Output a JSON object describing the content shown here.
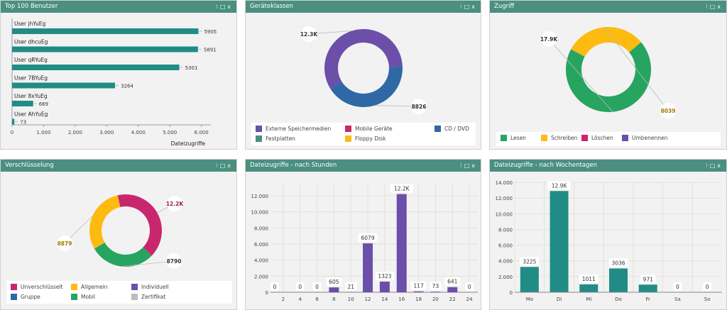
{
  "colors": {
    "header": "#4a8f80",
    "teal": "#218c86",
    "purple": "#6b4fa8",
    "blue": "#2e69a6",
    "green": "#27a460",
    "yellow": "#fdbb12",
    "magenta": "#c9276d",
    "gray": "#bdbdbd",
    "grid": "#e0e0cf"
  },
  "panels": [
    {
      "title": "Top 100 Benutzer"
    },
    {
      "title": "Geräteklassen"
    },
    {
      "title": "Zugriff"
    },
    {
      "title": "Verschlüsselung"
    },
    {
      "title": "Dateizugriffe - nach Stunden"
    },
    {
      "title": "Dateizugriffe - nach Wochentagen"
    }
  ],
  "controls": {
    "pin": "⁝",
    "max": "□",
    "close": "x"
  },
  "chart_data": [
    {
      "type": "bar",
      "orientation": "horizontal",
      "title": "Top 100 Benutzer",
      "categories": [
        "User jhYuEg",
        "User dhcuEg",
        "User qRYuEg",
        "User 7BYuEg",
        "User 8xYuEg",
        "User AhYuEg"
      ],
      "values": [
        5905,
        5891,
        5301,
        3264,
        669,
        73
      ],
      "value_labels": [
        "5905",
        "5891",
        "5301",
        "3264",
        "669",
        "73"
      ],
      "xlabel": "Dateizugriffe",
      "xlim": [
        0,
        6300
      ],
      "xticks": [
        0,
        1000,
        2000,
        3000,
        4000,
        5000,
        6000
      ],
      "xtick_labels": [
        "0",
        "1.000",
        "2.000",
        "3.000",
        "4.000",
        "5.000",
        "6.000"
      ]
    },
    {
      "type": "pie",
      "style": "donut",
      "title": "Geräteklassen",
      "slices": [
        {
          "name": "Externe Speichermedien",
          "value": 12300,
          "color": "#6b4fa8"
        },
        {
          "name": "CD / DVD",
          "value": 8826,
          "color": "#2e69a6"
        }
      ],
      "callouts": [
        "12.3K",
        "8826"
      ],
      "legend": [
        {
          "label": "Externe Speichermedien",
          "color": "#6b4fa8"
        },
        {
          "label": "Mobile Geräte",
          "color": "#c9276d"
        },
        {
          "label": "CD / DVD",
          "color": "#2e69a6"
        },
        {
          "label": "Festplatten",
          "color": "#4a8f80"
        },
        {
          "label": "Floppy Disk",
          "color": "#fdbb12"
        }
      ]
    },
    {
      "type": "pie",
      "style": "donut",
      "title": "Zugriff",
      "slices": [
        {
          "name": "Lesen",
          "value": 17900,
          "color": "#27a460"
        },
        {
          "name": "Schreiben",
          "value": 8039,
          "color": "#fdbb12"
        }
      ],
      "callouts": [
        "17.9K",
        "8039"
      ],
      "legend": [
        {
          "label": "Lesen",
          "color": "#27a460"
        },
        {
          "label": "Schreiben",
          "color": "#fdbb12"
        },
        {
          "label": "Löschen",
          "color": "#c9276d"
        },
        {
          "label": "Umbenennen",
          "color": "#6b4fa8"
        }
      ]
    },
    {
      "type": "pie",
      "style": "donut",
      "title": "Verschlüsselung",
      "slices": [
        {
          "name": "Unverschlüsselt",
          "value": 12200,
          "color": "#c9276d"
        },
        {
          "name": "Mobil",
          "value": 8790,
          "color": "#27a460"
        },
        {
          "name": "Allgemein",
          "value": 8879,
          "color": "#fdbb12"
        }
      ],
      "callouts": [
        "12.2K",
        "8790",
        "8879"
      ],
      "legend": [
        {
          "label": "Unverschlüsselt",
          "color": "#c9276d"
        },
        {
          "label": "Allgemein",
          "color": "#fdbb12"
        },
        {
          "label": "Individuell",
          "color": "#6b4fa8"
        },
        {
          "label": "Gruppe",
          "color": "#2e69a6"
        },
        {
          "label": "Mobil",
          "color": "#27a460"
        },
        {
          "label": "Zertifikat",
          "color": "#bdbdbd"
        }
      ]
    },
    {
      "type": "bar",
      "title": "Dateizugriffe - nach Stunden",
      "categories": [
        "1",
        "2",
        "3",
        "4",
        "5",
        "6",
        "7",
        "8",
        "9",
        "10",
        "11",
        "12",
        "13",
        "14",
        "15",
        "16",
        "17",
        "18",
        "19",
        "20",
        "21",
        "22",
        "23"
      ],
      "values": [
        0,
        0,
        0,
        0,
        0,
        0,
        0,
        605,
        0,
        21,
        0,
        6079,
        0,
        1323,
        0,
        12200,
        0,
        117,
        0,
        73,
        0,
        641,
        0
      ],
      "labeled": [
        1,
        4,
        6,
        8,
        10,
        12,
        14,
        16,
        18,
        20,
        22,
        24
      ],
      "label_text": {
        "1": "0",
        "4": "0",
        "6": "0",
        "8": "605",
        "10": "21",
        "12": "6079",
        "14": "1323",
        "16": "12.2K",
        "18": "117",
        "20": "73",
        "22": "641",
        "24": "0"
      },
      "ylim": [
        0,
        13400
      ],
      "yticks": [
        0,
        2000,
        4000,
        6000,
        8000,
        10000,
        12000
      ],
      "ytick_labels": [
        "0",
        "2.000",
        "4.000",
        "6.000",
        "8.000",
        "10.000",
        "12.000"
      ],
      "xticks": [
        2,
        4,
        6,
        8,
        10,
        12,
        14,
        16,
        18,
        20,
        22,
        24
      ],
      "xtick_labels": [
        "2",
        "4",
        "6",
        "8",
        "10",
        "12",
        "14",
        "16",
        "18",
        "20",
        "22",
        "24"
      ]
    },
    {
      "type": "bar",
      "title": "Dateizugriffe - nach Wochentagen",
      "categories": [
        "Mo",
        "Di",
        "Mi",
        "Do",
        "Fr",
        "Sa",
        "So"
      ],
      "values": [
        3225,
        12900,
        1011,
        3036,
        971,
        0,
        0
      ],
      "value_labels": [
        "3225",
        "12.9K",
        "1011",
        "3036",
        "971",
        "0",
        "0"
      ],
      "ylim": [
        0,
        14100
      ],
      "yticks": [
        0,
        2000,
        4000,
        6000,
        8000,
        10000,
        12000,
        14000
      ],
      "ytick_labels": [
        "0",
        "2.000",
        "4.000",
        "6.000",
        "8.000",
        "10.000",
        "12.000",
        "14.000"
      ]
    }
  ]
}
